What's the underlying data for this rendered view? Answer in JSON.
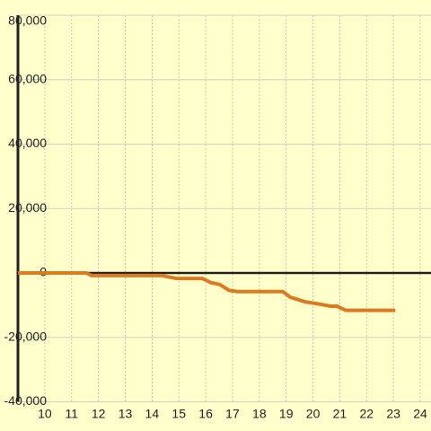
{
  "chart_data": {
    "type": "line",
    "x": [
      9.0,
      11.55,
      11.75,
      14.36,
      14.9,
      15.87,
      16.2,
      16.53,
      16.87,
      17.2,
      18.88,
      19.15,
      19.72,
      20.2,
      20.65,
      20.89,
      21.22,
      23.07
    ],
    "series": [
      {
        "color": "#dc7a22",
        "values": [
          0,
          0,
          -800,
          -800,
          -1700,
          -1700,
          -3000,
          -3600,
          -5400,
          -5800,
          -5800,
          -7500,
          -9000,
          -9600,
          -10300,
          -10300,
          -11600,
          -11600
        ]
      }
    ],
    "xlim": [
      9,
      24.4
    ],
    "xticks": [
      10,
      11,
      12,
      13,
      14,
      15,
      16,
      17,
      18,
      19,
      20,
      21,
      22,
      23,
      24
    ],
    "ylim": [
      -40000,
      80000
    ],
    "yticks": [
      {
        "value": -40000,
        "label": "-40,000"
      },
      {
        "value": -20000,
        "label": "-20,000"
      },
      0,
      {
        "value": 20000,
        "label": "20,000"
      },
      {
        "value": 40000,
        "label": "40,000"
      },
      {
        "value": 60000,
        "label": "60,000"
      },
      {
        "value": 80000,
        "label": "80,000"
      }
    ],
    "grid": true
  }
}
